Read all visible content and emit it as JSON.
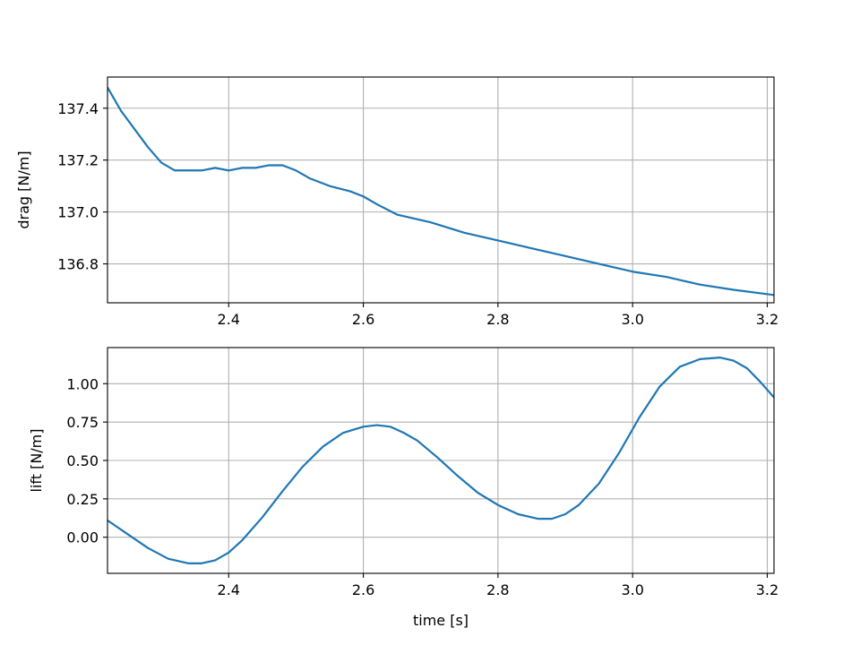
{
  "chart_data": [
    {
      "type": "line",
      "ylabel": "drag [N/m]",
      "xlabel": "",
      "xlim": [
        2.22,
        3.21
      ],
      "ylim": [
        136.65,
        137.52
      ],
      "xticks": [
        2.4,
        2.6,
        2.8,
        3.0,
        3.2
      ],
      "xtick_labels": [
        "2.4",
        "2.6",
        "2.8",
        "3.0",
        "3.2"
      ],
      "yticks": [
        136.8,
        137.0,
        137.2,
        137.4
      ],
      "ytick_labels": [
        "136.8",
        "137.0",
        "137.2",
        "137.4"
      ],
      "grid": true,
      "color": "#1f77b4",
      "series": [
        {
          "x": [
            2.22,
            2.24,
            2.26,
            2.28,
            2.3,
            2.32,
            2.34,
            2.36,
            2.38,
            2.4,
            2.42,
            2.44,
            2.46,
            2.48,
            2.5,
            2.52,
            2.55,
            2.58,
            2.6,
            2.62,
            2.65,
            2.7,
            2.75,
            2.8,
            2.85,
            2.9,
            2.95,
            3.0,
            3.05,
            3.1,
            3.15,
            3.21
          ],
          "y": [
            137.48,
            137.39,
            137.32,
            137.25,
            137.19,
            137.16,
            137.16,
            137.16,
            137.17,
            137.16,
            137.17,
            137.17,
            137.18,
            137.18,
            137.16,
            137.13,
            137.1,
            137.08,
            137.06,
            137.03,
            136.99,
            136.96,
            136.92,
            136.89,
            136.86,
            136.83,
            136.8,
            136.77,
            136.75,
            136.72,
            136.7,
            136.68
          ]
        }
      ]
    },
    {
      "type": "line",
      "ylabel": "lift [N/m]",
      "xlabel": "time [s]",
      "xlim": [
        2.22,
        3.21
      ],
      "ylim": [
        -0.235,
        1.235
      ],
      "xticks": [
        2.4,
        2.6,
        2.8,
        3.0,
        3.2
      ],
      "xtick_labels": [
        "2.4",
        "2.6",
        "2.8",
        "3.0",
        "3.2"
      ],
      "yticks": [
        0.0,
        0.25,
        0.5,
        0.75,
        1.0
      ],
      "ytick_labels": [
        "0.00",
        "0.25",
        "0.50",
        "0.75",
        "1.00"
      ],
      "grid": true,
      "color": "#1f77b4",
      "series": [
        {
          "x": [
            2.22,
            2.25,
            2.28,
            2.31,
            2.34,
            2.36,
            2.38,
            2.4,
            2.42,
            2.45,
            2.48,
            2.51,
            2.54,
            2.57,
            2.6,
            2.62,
            2.64,
            2.66,
            2.68,
            2.71,
            2.74,
            2.77,
            2.8,
            2.83,
            2.86,
            2.88,
            2.9,
            2.92,
            2.95,
            2.98,
            3.01,
            3.04,
            3.07,
            3.1,
            3.13,
            3.15,
            3.17,
            3.19,
            3.21
          ],
          "y": [
            0.11,
            0.02,
            -0.07,
            -0.14,
            -0.17,
            -0.17,
            -0.15,
            -0.1,
            -0.02,
            0.13,
            0.3,
            0.46,
            0.59,
            0.68,
            0.72,
            0.73,
            0.72,
            0.68,
            0.63,
            0.52,
            0.4,
            0.29,
            0.21,
            0.15,
            0.12,
            0.12,
            0.15,
            0.21,
            0.35,
            0.55,
            0.78,
            0.98,
            1.11,
            1.16,
            1.17,
            1.15,
            1.1,
            1.01,
            0.91
          ]
        }
      ]
    }
  ]
}
